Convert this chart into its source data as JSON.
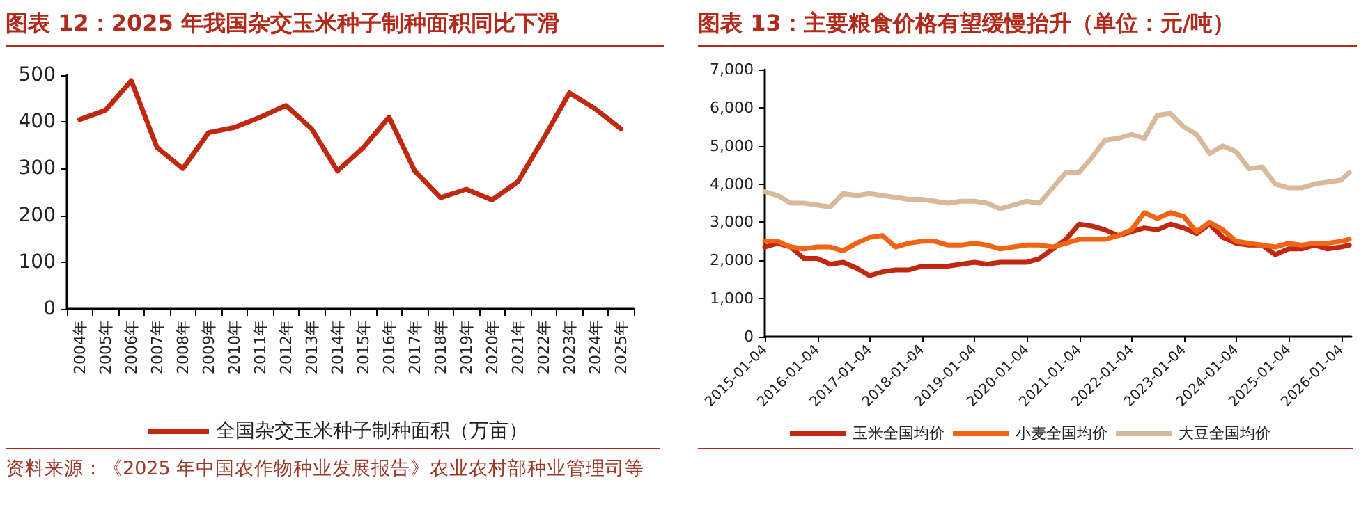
{
  "chart_data": [
    {
      "type": "line",
      "title": "图表 12：2025 年我国杂交玉米种子制种面积同比下滑",
      "categories": [
        "2004年",
        "2005年",
        "2006年",
        "2007年",
        "2008年",
        "2009年",
        "2010年",
        "2011年",
        "2012年",
        "2013年",
        "2014年",
        "2015年",
        "2016年",
        "2017年",
        "2018年",
        "2019年",
        "2020年",
        "2021年",
        "2022年",
        "2023年",
        "2024年",
        "2025年"
      ],
      "series": [
        {
          "name": "全国杂交玉米种子制种面积（万亩）",
          "color": "#c0280f",
          "values": [
            405,
            425,
            488,
            345,
            300,
            377,
            388,
            410,
            435,
            385,
            295,
            345,
            410,
            295,
            238,
            256,
            233,
            272,
            365,
            462,
            428,
            385
          ]
        }
      ],
      "ylim": [
        0,
        500
      ],
      "yticks": [
        0,
        100,
        200,
        300,
        400,
        500
      ],
      "grid": false,
      "legend": "bottom",
      "marker": "none",
      "line_style": "solid",
      "annotations": [
        "资料来源：《2025 年中国农作物种业发展报告》农业农村部种业管理司等"
      ]
    },
    {
      "type": "line",
      "title": "图表 13：主要粮食价格有望缓慢抬升（单位：元/吨）",
      "xlim": [
        "2015-01-01",
        "2026-03-15"
      ],
      "xticks": [
        "2015-01-04",
        "2016-01-04",
        "2017-01-04",
        "2018-01-04",
        "2019-01-04",
        "2020-01-04",
        "2021-01-04",
        "2022-01-04",
        "2023-01-04",
        "2024-01-04",
        "2025-01-04",
        "2026-01-04"
      ],
      "ylim": [
        0,
        7000
      ],
      "yticks": [
        0,
        {
          "value": 1000,
          "label": "1,000"
        },
        {
          "value": 2000,
          "label": "2,000"
        },
        {
          "value": 3000,
          "label": "3,000"
        },
        {
          "value": 4000,
          "label": "4,000"
        },
        {
          "value": 5000,
          "label": "5,000"
        },
        {
          "value": 6000,
          "label": "6,000"
        },
        {
          "value": 7000,
          "label": "7,000"
        }
      ],
      "grid": false,
      "legend": "bottom",
      "marker": "none",
      "line_style": "solid",
      "series": [
        {
          "name": "玉米全国均价",
          "color": "#c0280f",
          "x": [
            "2015-01",
            "2015-04",
            "2015-07",
            "2015-10",
            "2016-01",
            "2016-04",
            "2016-07",
            "2016-10",
            "2017-01",
            "2017-04",
            "2017-07",
            "2017-10",
            "2018-01",
            "2018-04",
            "2018-07",
            "2018-10",
            "2019-01",
            "2019-04",
            "2019-07",
            "2019-10",
            "2020-01",
            "2020-04",
            "2020-07",
            "2020-10",
            "2021-01",
            "2021-04",
            "2021-07",
            "2021-10",
            "2022-01",
            "2022-04",
            "2022-07",
            "2022-10",
            "2023-01",
            "2023-04",
            "2023-07",
            "2023-10",
            "2024-01",
            "2024-04",
            "2024-07",
            "2024-10",
            "2025-01",
            "2025-04",
            "2025-07",
            "2025-10",
            "2026-01",
            "2026-03"
          ],
          "values": [
            2350,
            2450,
            2350,
            2050,
            2050,
            1900,
            1950,
            1800,
            1600,
            1700,
            1750,
            1750,
            1850,
            1850,
            1850,
            1900,
            1950,
            1900,
            1950,
            1950,
            1950,
            2050,
            2300,
            2550,
            2950,
            2900,
            2800,
            2650,
            2750,
            2850,
            2800,
            2950,
            2850,
            2700,
            2950,
            2600,
            2450,
            2400,
            2400,
            2150,
            2300,
            2300,
            2400,
            2300,
            2350,
            2400
          ]
        },
        {
          "name": "小麦全国均价",
          "color": "#f06414",
          "x": [
            "2015-01",
            "2015-04",
            "2015-07",
            "2015-10",
            "2016-01",
            "2016-04",
            "2016-07",
            "2016-10",
            "2017-01",
            "2017-04",
            "2017-07",
            "2017-10",
            "2018-01",
            "2018-04",
            "2018-07",
            "2018-10",
            "2019-01",
            "2019-04",
            "2019-07",
            "2019-10",
            "2020-01",
            "2020-04",
            "2020-07",
            "2020-10",
            "2021-01",
            "2021-04",
            "2021-07",
            "2021-10",
            "2022-01",
            "2022-04",
            "2022-07",
            "2022-10",
            "2023-01",
            "2023-04",
            "2023-07",
            "2023-10",
            "2024-01",
            "2024-04",
            "2024-07",
            "2024-10",
            "2025-01",
            "2025-04",
            "2025-07",
            "2025-10",
            "2026-01",
            "2026-03"
          ],
          "values": [
            2500,
            2500,
            2350,
            2300,
            2350,
            2350,
            2250,
            2450,
            2600,
            2650,
            2350,
            2450,
            2500,
            2500,
            2400,
            2400,
            2450,
            2400,
            2300,
            2350,
            2400,
            2400,
            2350,
            2450,
            2550,
            2550,
            2550,
            2650,
            2800,
            3250,
            3100,
            3250,
            3150,
            2750,
            3000,
            2800,
            2500,
            2450,
            2400,
            2350,
            2450,
            2400,
            2450,
            2450,
            2500,
            2550
          ]
        },
        {
          "name": "大豆全国均价",
          "color": "#d9b99b",
          "x": [
            "2015-01",
            "2015-04",
            "2015-07",
            "2015-10",
            "2016-01",
            "2016-04",
            "2016-07",
            "2016-10",
            "2017-01",
            "2017-04",
            "2017-07",
            "2017-10",
            "2018-01",
            "2018-04",
            "2018-07",
            "2018-10",
            "2019-01",
            "2019-04",
            "2019-07",
            "2019-10",
            "2020-01",
            "2020-04",
            "2020-07",
            "2020-10",
            "2021-01",
            "2021-04",
            "2021-07",
            "2021-10",
            "2022-01",
            "2022-04",
            "2022-07",
            "2022-10",
            "2023-01",
            "2023-04",
            "2023-07",
            "2023-10",
            "2024-01",
            "2024-04",
            "2024-07",
            "2024-10",
            "2025-01",
            "2025-04",
            "2025-07",
            "2025-10",
            "2026-01",
            "2026-03"
          ],
          "values": [
            3800,
            3700,
            3500,
            3500,
            3450,
            3400,
            3750,
            3700,
            3750,
            3700,
            3650,
            3600,
            3600,
            3550,
            3500,
            3550,
            3550,
            3500,
            3350,
            3450,
            3550,
            3500,
            3900,
            4300,
            4300,
            4700,
            5150,
            5200,
            5300,
            5200,
            5800,
            5850,
            5500,
            5300,
            4800,
            5000,
            4850,
            4400,
            4450,
            4000,
            3900,
            3900,
            4000,
            4050,
            4100,
            4300
          ]
        }
      ]
    }
  ]
}
